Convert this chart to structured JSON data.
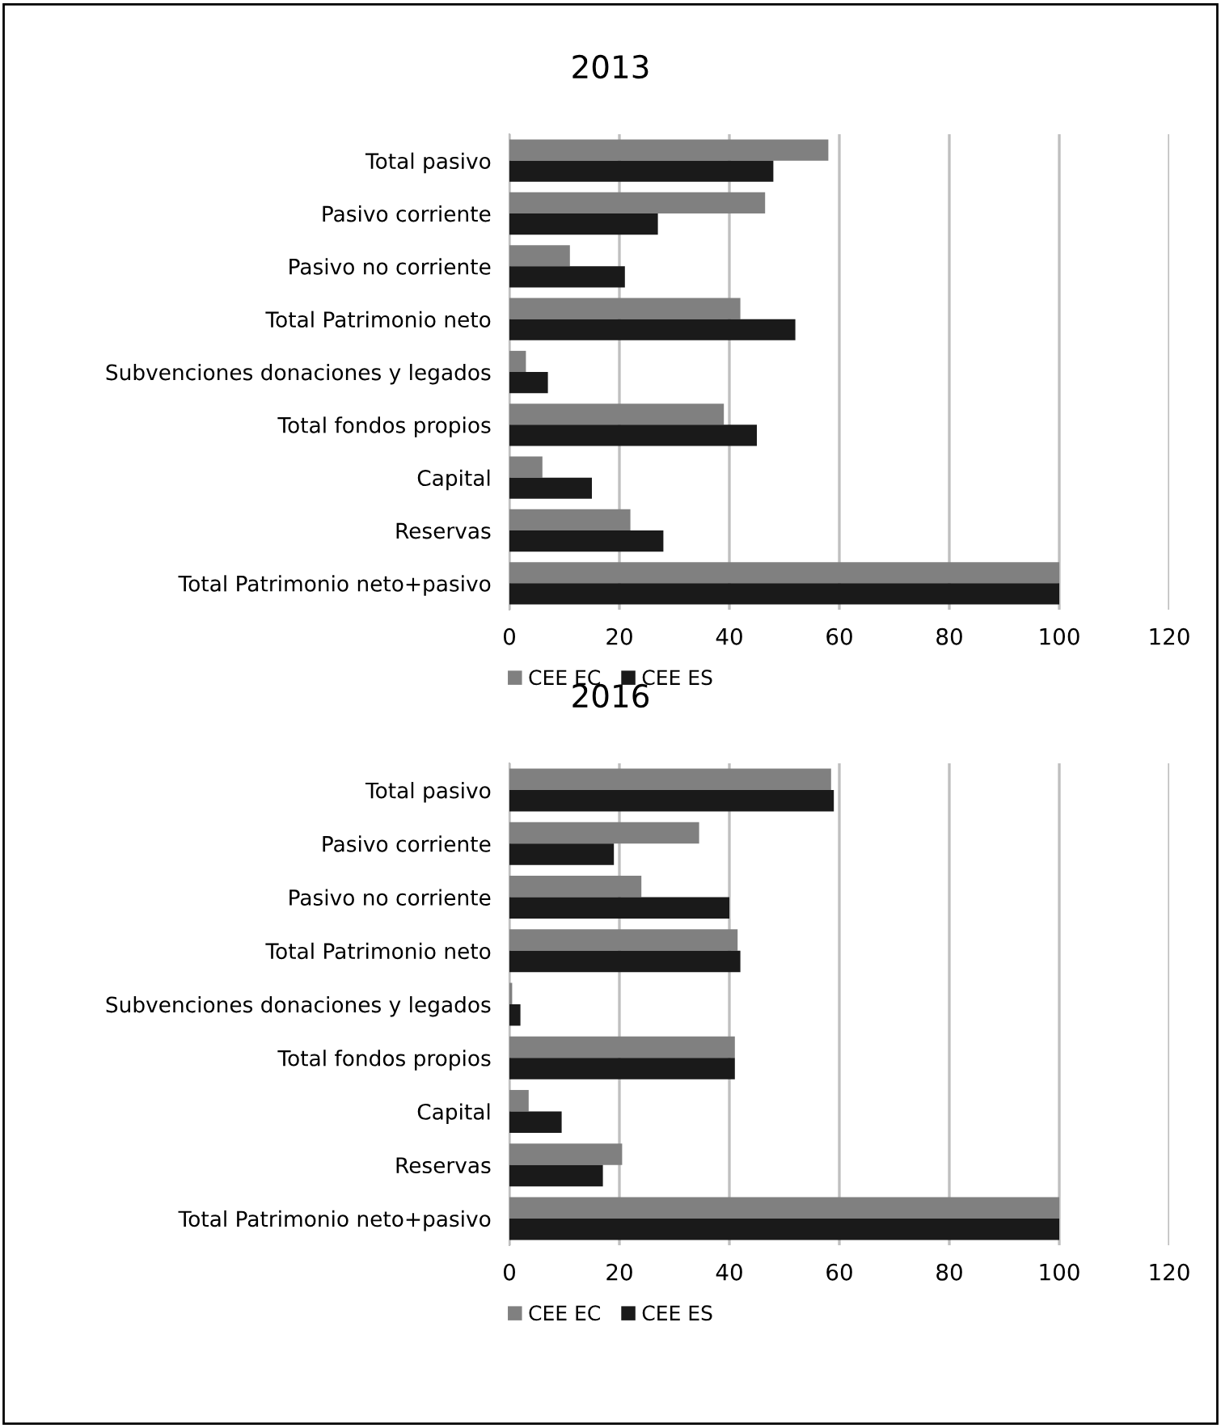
{
  "chart_data": [
    {
      "type": "bar",
      "orientation": "horizontal",
      "title": "2013",
      "categories": [
        "Total pasivo",
        "Pasivo corriente",
        "Pasivo no corriente",
        "Total Patrimonio neto",
        "Subvenciones donaciones y legados",
        "Total fondos propios",
        "Capital",
        "Reservas",
        "Total Patrimonio neto+pasivo"
      ],
      "series": [
        {
          "name": "CEE EC",
          "color": "#808080",
          "values": [
            58,
            46.5,
            11,
            42,
            3,
            39,
            6,
            22,
            100
          ]
        },
        {
          "name": "CEE ES",
          "color": "#1a1a1a",
          "values": [
            48,
            27,
            21,
            52,
            7,
            45,
            15,
            28,
            100
          ]
        }
      ],
      "xlim": [
        0,
        120
      ],
      "xticks": [
        0,
        20,
        40,
        60,
        80,
        100,
        120
      ],
      "grid": "x",
      "legend": "bottom"
    },
    {
      "type": "bar",
      "orientation": "horizontal",
      "title": "2016",
      "categories": [
        "Total pasivo",
        "Pasivo corriente",
        "Pasivo no corriente",
        "Total Patrimonio neto",
        "Subvenciones donaciones y legados",
        "Total fondos propios",
        "Capital",
        "Reservas",
        "Total Patrimonio neto+pasivo"
      ],
      "series": [
        {
          "name": "CEE EC",
          "color": "#808080",
          "values": [
            58.5,
            34.5,
            24,
            41.5,
            0.5,
            41,
            3.5,
            20.5,
            100
          ]
        },
        {
          "name": "CEE ES",
          "color": "#1a1a1a",
          "values": [
            59,
            19,
            40,
            42,
            2,
            41,
            9.5,
            17,
            100
          ]
        }
      ],
      "xlim": [
        0,
        120
      ],
      "xticks": [
        0,
        20,
        40,
        60,
        80,
        100,
        120
      ],
      "grid": "x",
      "legend": "bottom"
    }
  ]
}
